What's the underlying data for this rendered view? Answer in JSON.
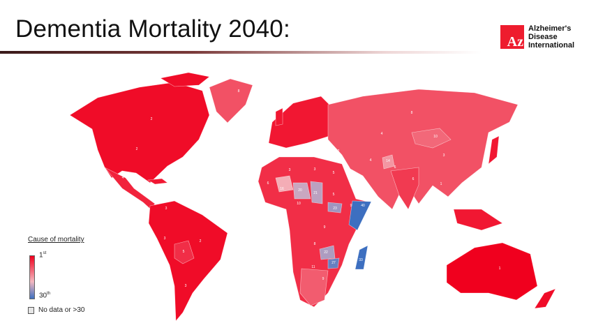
{
  "slide": {
    "title": "Dementia Mortality 2040:"
  },
  "logo": {
    "mark": "Az",
    "line1": "Alzheimer's",
    "line2": "Disease",
    "line3": "International",
    "color": "#ee1c2e"
  },
  "legend": {
    "title": "Cause of mortality",
    "top_label": "1",
    "top_sup": "st",
    "bottom_label": "30",
    "bottom_sup": "th",
    "nodata_label": "No data or >30",
    "colors": {
      "rank1": "#f0001e",
      "mid": "#f4b8c0",
      "rank30": "#3d6fc0",
      "nodata": "#e6e6e6"
    }
  },
  "map": {
    "country_ranks": [
      {
        "country": "United States",
        "rank": "2"
      },
      {
        "country": "Canada",
        "rank": "2"
      },
      {
        "country": "Mexico",
        "rank": "4"
      },
      {
        "country": "Greenland",
        "rank": "8"
      },
      {
        "country": "Colombia",
        "rank": "3"
      },
      {
        "country": "Peru",
        "rank": "3"
      },
      {
        "country": "Bolivia",
        "rank": "5"
      },
      {
        "country": "Brazil",
        "rank": "2"
      },
      {
        "country": "Argentina",
        "rank": "3"
      },
      {
        "country": "Russia",
        "rank": "8"
      },
      {
        "country": "Kazakhstan",
        "rank": "4"
      },
      {
        "country": "Mongolia",
        "rank": "10"
      },
      {
        "country": "China",
        "rank": "3"
      },
      {
        "country": "Iran",
        "rank": "4"
      },
      {
        "country": "Afghanistan",
        "rank": "14"
      },
      {
        "country": "Pakistan",
        "rank": "6"
      },
      {
        "country": "India",
        "rank": "6"
      },
      {
        "country": "Saudi Arabia",
        "rank": "2"
      },
      {
        "country": "Turkey",
        "rank": "2"
      },
      {
        "country": "Myanmar",
        "rank": "1"
      },
      {
        "country": "Algeria",
        "rank": "3"
      },
      {
        "country": "Libya",
        "rank": "3"
      },
      {
        "country": "Egypt",
        "rank": "5"
      },
      {
        "country": "Mauritania",
        "rank": "6"
      },
      {
        "country": "Mali",
        "rank": "16"
      },
      {
        "country": "Niger",
        "rank": "20"
      },
      {
        "country": "Chad",
        "rank": "21"
      },
      {
        "country": "Sudan",
        "rank": "5"
      },
      {
        "country": "Nigeria",
        "rank": "10"
      },
      {
        "country": "South Sudan",
        "rank": "23"
      },
      {
        "country": "Ethiopia",
        "rank": "9"
      },
      {
        "country": "Somalia",
        "rank": "40"
      },
      {
        "country": "DR Congo",
        "rank": "9"
      },
      {
        "country": "Angola",
        "rank": "8"
      },
      {
        "country": "Zambia",
        "rank": "22"
      },
      {
        "country": "Zimbabwe",
        "rank": "27"
      },
      {
        "country": "Mozambique",
        "rank": "11"
      },
      {
        "country": "Madagascar",
        "rank": "33"
      },
      {
        "country": "Namibia",
        "rank": "11"
      },
      {
        "country": "South Africa",
        "rank": "9"
      },
      {
        "country": "Australia",
        "rank": "1"
      }
    ]
  }
}
